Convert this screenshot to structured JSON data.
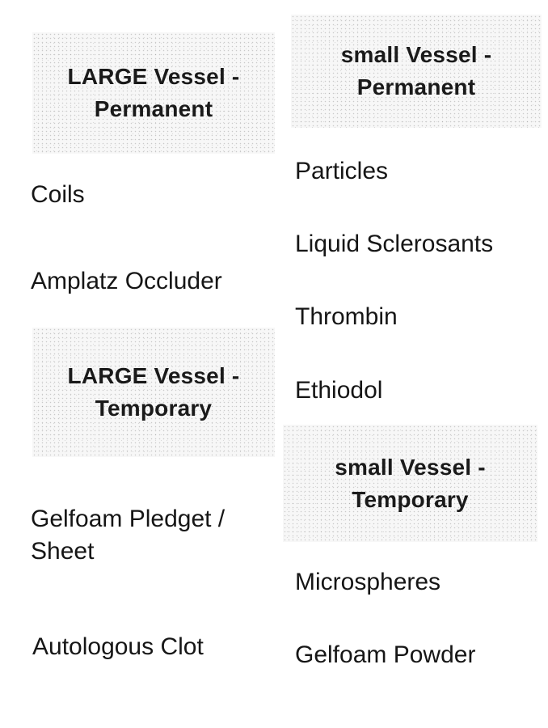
{
  "large_permanent": {
    "line1": "LARGE Vessel -",
    "line2": "Permanent",
    "items": [
      "Coils",
      "Amplatz Occluder"
    ]
  },
  "small_permanent": {
    "line1": "small Vessel -",
    "line2": "Permanent",
    "items": [
      "Particles",
      "Liquid Sclerosants",
      "Thrombin",
      "Ethiodol"
    ]
  },
  "large_temporary": {
    "line1": "LARGE Vessel -",
    "line2": "Temporary",
    "items": [
      "Gelfoam Pledget / Sheet",
      "Autologous Clot"
    ]
  },
  "small_temporary": {
    "line1": "small Vessel -",
    "line2": "Temporary",
    "items": [
      "Microspheres",
      "Gelfoam Powder"
    ]
  }
}
